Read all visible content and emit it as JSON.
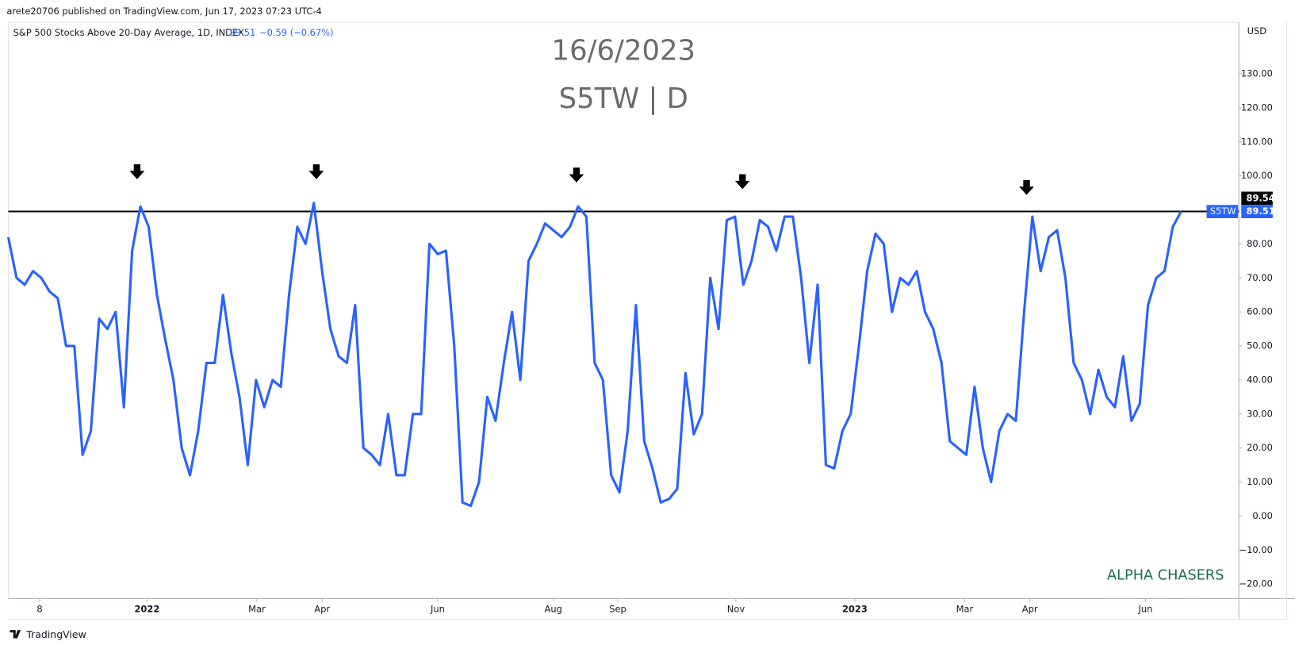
{
  "header": {
    "published": "arete20706 published on TradingView.com, Jun 17, 2023 07:23 UTC-4"
  },
  "footer": {
    "brand": "TradingView"
  },
  "chart_data": {
    "type": "line",
    "title": "S&P 500 Stocks Above 20-Day Average, 1D, INDEX",
    "change": "−0.59 (−0.67%)",
    "watermark": [
      "16/6/2023",
      "S5TW | D"
    ],
    "currency": "USD",
    "annotation": "ALPHA CHASERS",
    "series": [
      {
        "name": "S5TW",
        "color": "#2962ff",
        "values": [
          82,
          70,
          68,
          72,
          70,
          66,
          64,
          50,
          50,
          18,
          25,
          58,
          55,
          60,
          32,
          78,
          91,
          85,
          65,
          52,
          40,
          20,
          12,
          25,
          45,
          45,
          65,
          48,
          35,
          15,
          40,
          32,
          40,
          38,
          65,
          85,
          80,
          92,
          72,
          55,
          47,
          45,
          62,
          20,
          18,
          15,
          30,
          12,
          12,
          30,
          30,
          80,
          77,
          78,
          50,
          4,
          3,
          10,
          35,
          28,
          45,
          60,
          40,
          75,
          80,
          86,
          84,
          82,
          85,
          91,
          88,
          45,
          40,
          12,
          7,
          25,
          62,
          22,
          14,
          4,
          5,
          8,
          42,
          24,
          30,
          70,
          55,
          87,
          88,
          68,
          75,
          87,
          85,
          78,
          88,
          88,
          70,
          45,
          68,
          15,
          14,
          25,
          30,
          50,
          72,
          83,
          80,
          60,
          70,
          68,
          72,
          60,
          55,
          45,
          22,
          20,
          18,
          38,
          20,
          10,
          25,
          30,
          28,
          60,
          88,
          72,
          82,
          84,
          70,
          45,
          40,
          30,
          43,
          35,
          32,
          47,
          28,
          33,
          62,
          70,
          72,
          85,
          89.51
        ]
      }
    ],
    "hline": {
      "value": 89.54,
      "color": "#000000"
    },
    "xlim": [
      0,
      149
    ],
    "xticks": [
      {
        "value": 3.8,
        "label": "8"
      },
      {
        "value": 16.8,
        "label": "2022"
      },
      {
        "value": 30.1,
        "label": "Mar"
      },
      {
        "value": 38,
        "label": "Apr"
      },
      {
        "value": 52,
        "label": "Jun"
      },
      {
        "value": 66,
        "label": "Aug"
      },
      {
        "value": 73.8,
        "label": "Sep"
      },
      {
        "value": 88.1,
        "label": "Nov"
      },
      {
        "value": 102.5,
        "label": "2023"
      },
      {
        "value": 115.8,
        "label": "Mar"
      },
      {
        "value": 123.7,
        "label": "Apr"
      },
      {
        "value": 137.7,
        "label": "Jun"
      }
    ],
    "ylim": [
      -24.3,
      144
    ],
    "yticks": [
      {
        "value": -20,
        "label": "−20.00"
      },
      {
        "value": -10,
        "label": "−10.00"
      },
      {
        "value": 0,
        "label": "0.00"
      },
      {
        "value": 10,
        "label": "10.00"
      },
      {
        "value": 20,
        "label": "20.00"
      },
      {
        "value": 30,
        "label": "30.00"
      },
      {
        "value": 40,
        "label": "40.00"
      },
      {
        "value": 50,
        "label": "50.00"
      },
      {
        "value": 60,
        "label": "60.00"
      },
      {
        "value": 70,
        "label": "70.00"
      },
      {
        "value": 80,
        "label": "80.00"
      },
      {
        "value": 90,
        "label": "90.00"
      },
      {
        "value": 100,
        "label": "100.00"
      },
      {
        "value": 110,
        "label": "110.00"
      },
      {
        "value": 120,
        "label": "120.00"
      },
      {
        "value": 130,
        "label": "130.00"
      }
    ]
  }
}
